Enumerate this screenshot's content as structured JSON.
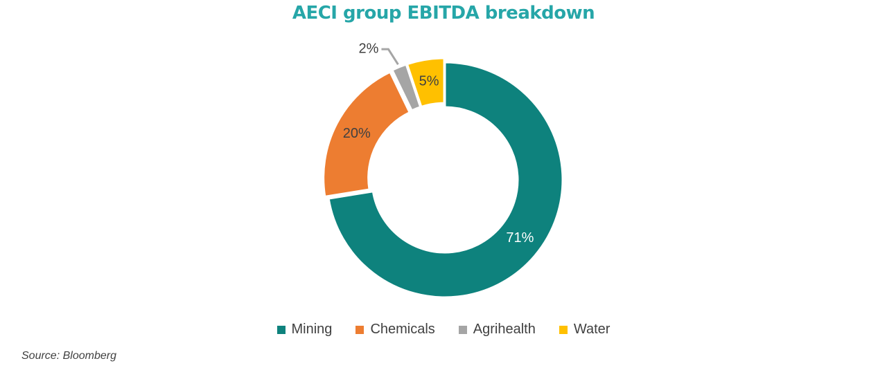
{
  "title": "AECI group EBITDA breakdown",
  "source": "Source: Bloomberg",
  "chart_data": {
    "type": "pie",
    "style": "donut",
    "title": "AECI group EBITDA breakdown",
    "categories": [
      "Mining",
      "Chemicals",
      "Agrihealth",
      "Water"
    ],
    "values": [
      71,
      20,
      2,
      5
    ],
    "labels": [
      "71%",
      "20%",
      "2%",
      "5%"
    ],
    "units": "%",
    "colors": [
      "#0e827d",
      "#ed7d31",
      "#a5a5a5",
      "#ffc000"
    ],
    "legend_position": "bottom"
  }
}
